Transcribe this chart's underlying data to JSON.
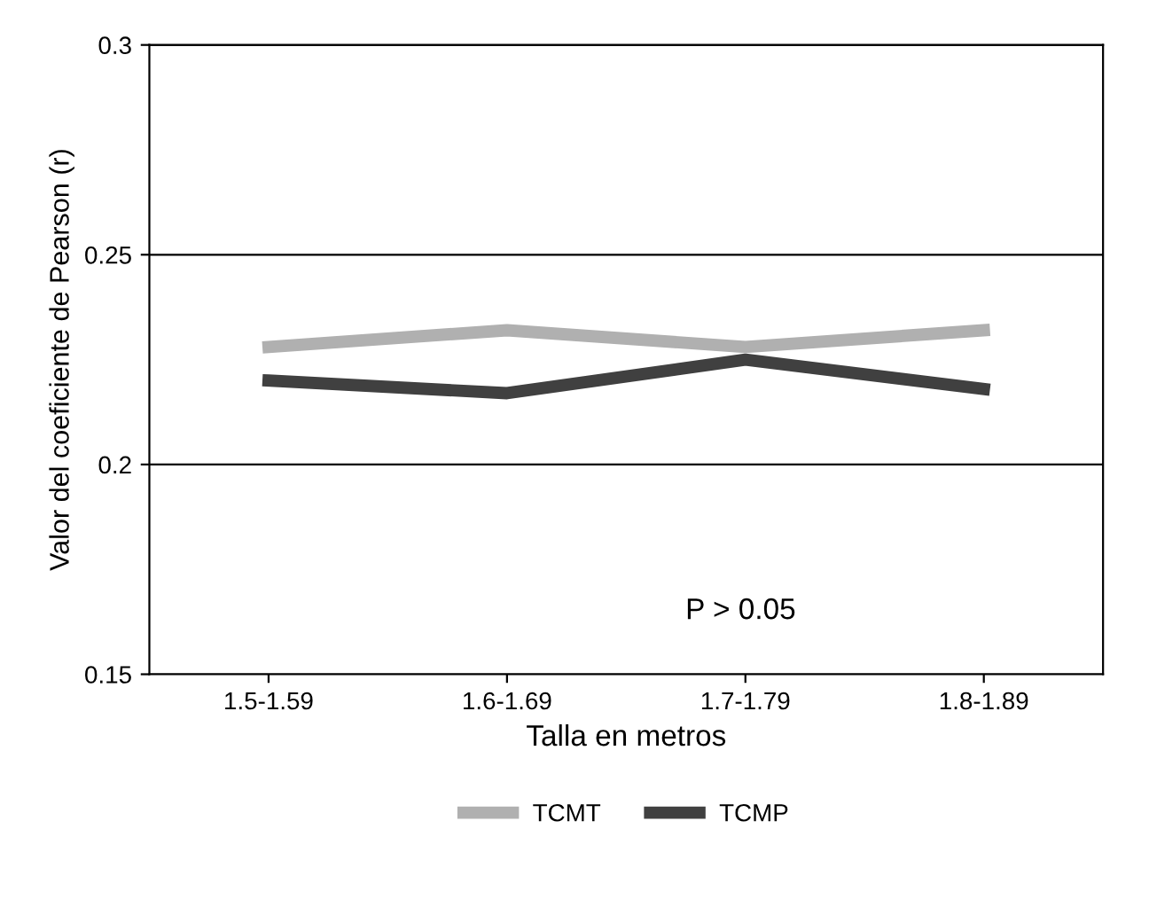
{
  "chart_data": {
    "type": "line",
    "xlabel": "Talla en metros",
    "ylabel": "Valor del coeficiente de Pearson (r)",
    "categories": [
      "1.5-1.59",
      "1.6-1.69",
      "1.7-1.79",
      "1.8-1.89"
    ],
    "series": [
      {
        "name": "TCMT",
        "color": "#b0b0b0",
        "values": [
          0.228,
          0.232,
          0.228,
          0.232
        ]
      },
      {
        "name": "TCMP",
        "color": "#404040",
        "values": [
          0.22,
          0.217,
          0.225,
          0.218
        ]
      }
    ],
    "ylim": [
      0.15,
      0.3
    ],
    "yticks": [
      0.15,
      0.2,
      0.25,
      0.3
    ],
    "grid": "y",
    "legend": "bottom",
    "marker": "none",
    "line_style": "solid",
    "annotations": [
      "P > 0.05"
    ]
  }
}
